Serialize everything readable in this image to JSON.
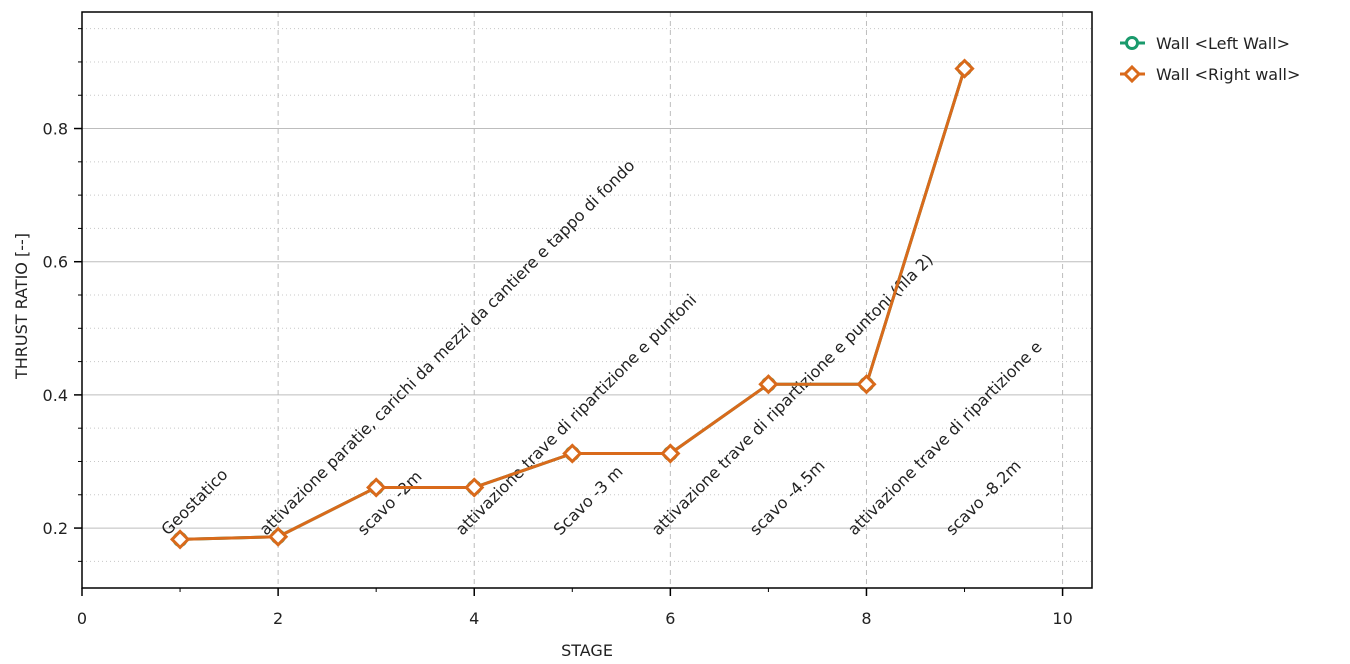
{
  "chart_data": {
    "type": "line",
    "title": "",
    "xlabel": "STAGE",
    "ylabel": "THRUST RATIO [--]",
    "xlim": [
      0,
      10.3
    ],
    "ylim": [
      0.11,
      0.975
    ],
    "x_ticks": [
      0,
      2,
      4,
      6,
      8,
      10
    ],
    "x_tick_labels": [
      "0",
      "2",
      "4",
      "6",
      "8",
      "10"
    ],
    "y_ticks": [
      0.2,
      0.4,
      0.6,
      0.8
    ],
    "y_tick_labels": [
      "0.2",
      "0.4",
      "0.6",
      "0.8"
    ],
    "grid": true,
    "legend_position": "top-right, outside plot",
    "stage_labels": [
      {
        "x": 1,
        "text": "Geostatico"
      },
      {
        "x": 2,
        "text": "attivazione paratie, carichi da mezzi da cantiere e tappo di fondo"
      },
      {
        "x": 3,
        "text": "scavo -2m"
      },
      {
        "x": 4,
        "text": "attivazione trave di ripartizione e puntoni"
      },
      {
        "x": 5,
        "text": "Scavo -3 m"
      },
      {
        "x": 6,
        "text": "attivazione trave di ripartizione e puntoni (fila 2)"
      },
      {
        "x": 7,
        "text": "scavo  -4.5m"
      },
      {
        "x": 8,
        "text": "attivazione trave di ripartizione e"
      },
      {
        "x": 9,
        "text": "scavo -8.2m"
      }
    ],
    "series": [
      {
        "name": "Wall <Left Wall>",
        "color": "#1a9a6c",
        "marker": "circle",
        "x": [
          1,
          2,
          3,
          4,
          5,
          6,
          7,
          8,
          9
        ],
        "values": [
          0.183,
          0.187,
          0.261,
          0.261,
          0.312,
          0.312,
          0.416,
          0.416,
          0.89
        ]
      },
      {
        "name": "Wall <Right wall>",
        "color": "#d96a1b",
        "marker": "diamond",
        "x": [
          1,
          2,
          3,
          4,
          5,
          6,
          7,
          8,
          9
        ],
        "values": [
          0.183,
          0.187,
          0.261,
          0.261,
          0.312,
          0.312,
          0.416,
          0.416,
          0.89
        ]
      }
    ]
  }
}
